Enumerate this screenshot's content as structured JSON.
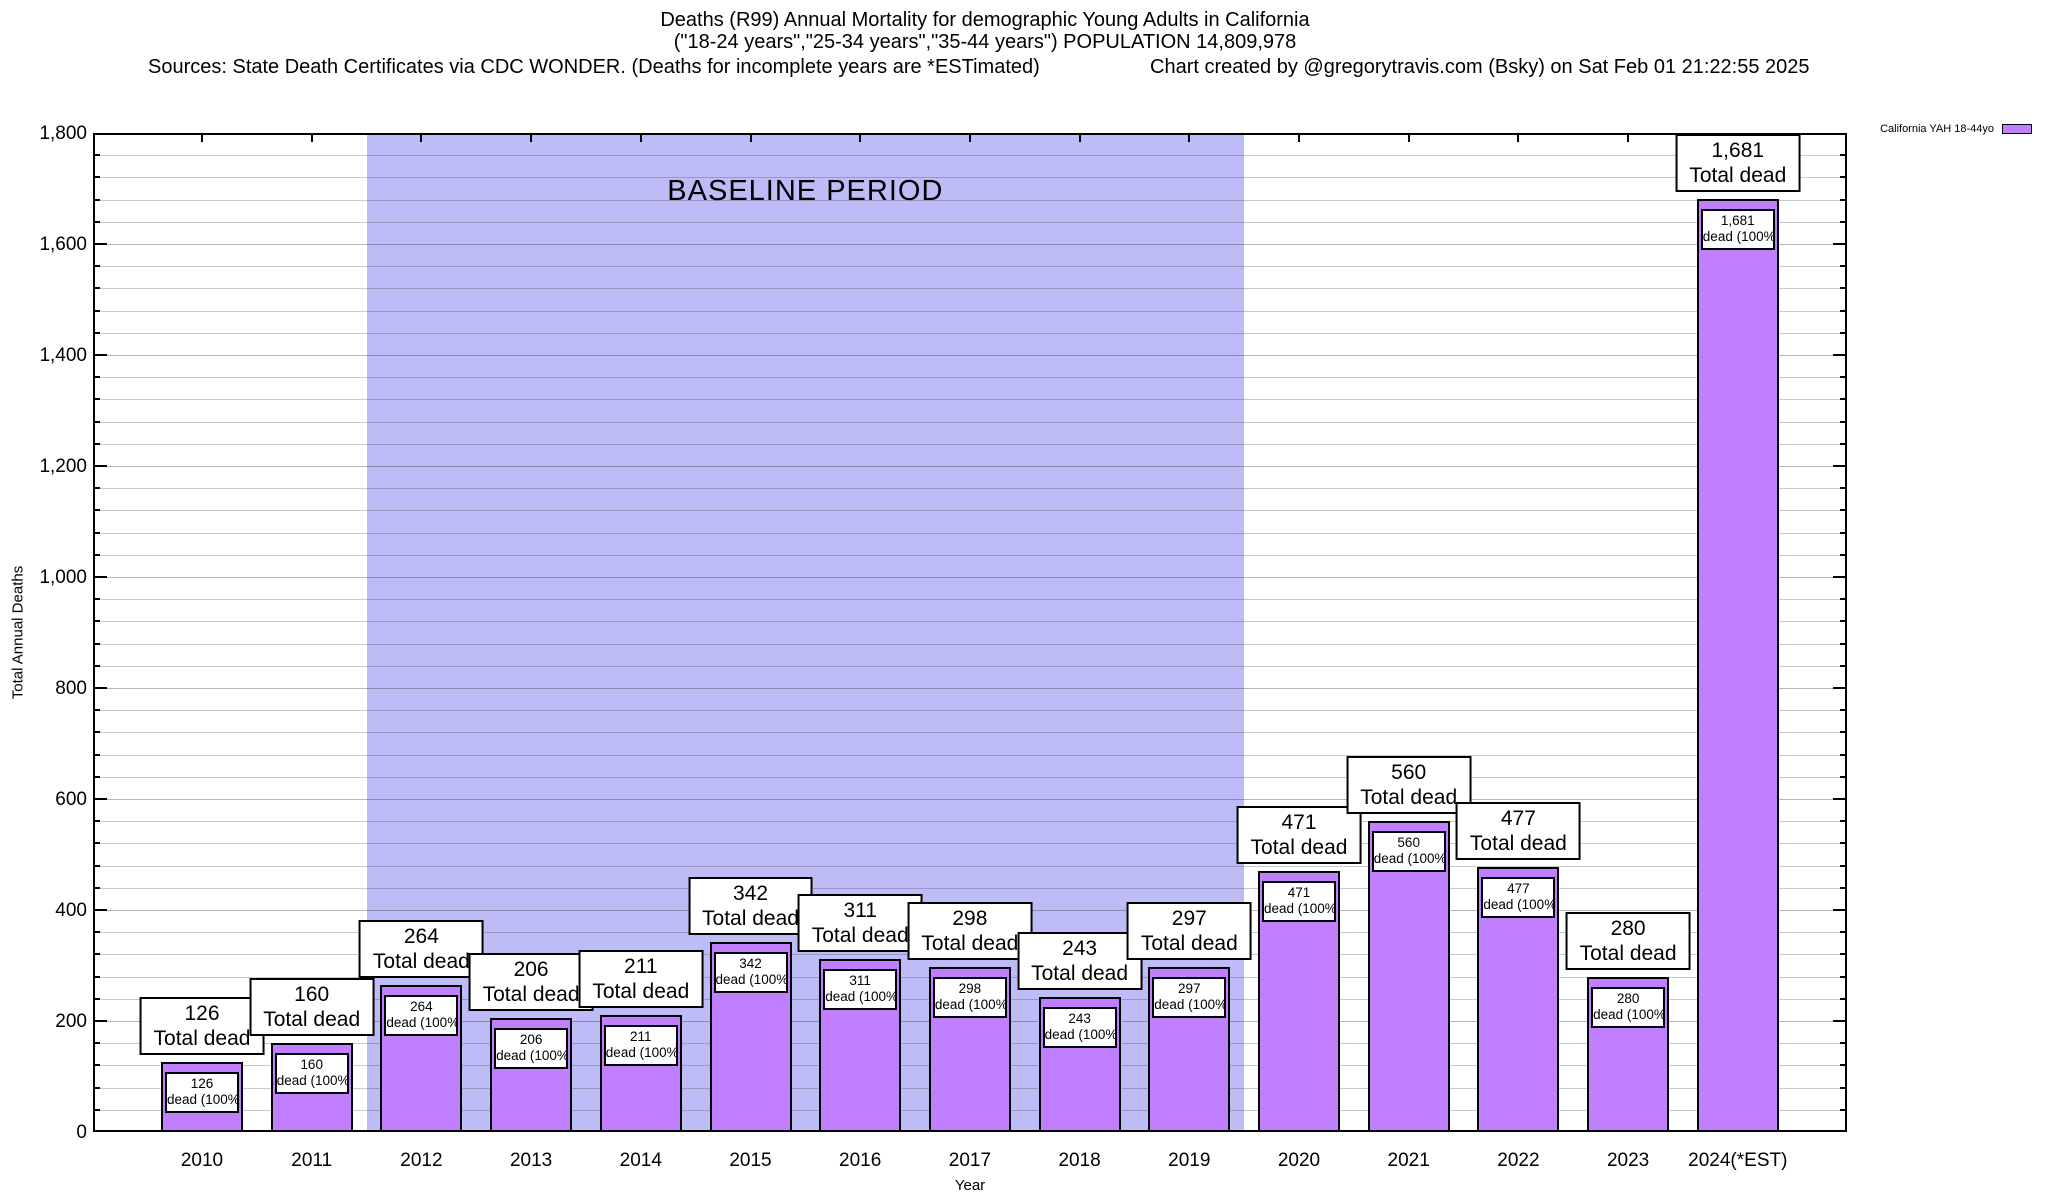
{
  "header": {
    "title_line1": "Deaths (R99) Annual Mortality for demographic Young Adults in California",
    "title_line2": "(\"18-24 years\",\"25-34 years\",\"35-44 years\") POPULATION 14,809,978",
    "sources_line": "Sources: State Death Certificates via CDC WONDER. (Deaths for incomplete years are *ESTimated)",
    "credit_line": "Chart created by @gregorytravis.com (Bsky) on Sat Feb 01 21:22:55 2025"
  },
  "legend": {
    "label": "California YAH 18-44yo",
    "swatch_color": "#bf7fff"
  },
  "chart_data": {
    "type": "bar",
    "title": "Deaths (R99) Annual Mortality for demographic Young Adults in California",
    "xlabel": "Year",
    "ylabel": "Total Annual Deaths",
    "ylim": [
      0,
      1800
    ],
    "ytick_step": 200,
    "minor_ytick_step": 40,
    "ytick_labels": [
      "0",
      "200",
      "400",
      "600",
      "800",
      "1,000",
      "1,200",
      "1,400",
      "1,600",
      "1,800"
    ],
    "grid": true,
    "legend_position": "top-right",
    "categories": [
      "2010",
      "2011",
      "2012",
      "2013",
      "2014",
      "2015",
      "2016",
      "2017",
      "2018",
      "2019",
      "2020",
      "2021",
      "2022",
      "2023",
      "2024(*EST)"
    ],
    "values": [
      126,
      160,
      264,
      206,
      211,
      342,
      311,
      298,
      243,
      297,
      471,
      560,
      477,
      280,
      1681
    ],
    "values_display": [
      "126",
      "160",
      "264",
      "206",
      "211",
      "342",
      "311",
      "298",
      "243",
      "297",
      "471",
      "560",
      "477",
      "280",
      "1,681"
    ],
    "bar_color": "#bf7fff",
    "bar_top_label_suffix": "Total dead",
    "bar_inner_label_suffix": "dead (100%)",
    "baseline_band": {
      "label": "BASELINE PERIOD",
      "start_category": "2012",
      "end_category": "2019",
      "color": "#bdbcf7"
    }
  }
}
